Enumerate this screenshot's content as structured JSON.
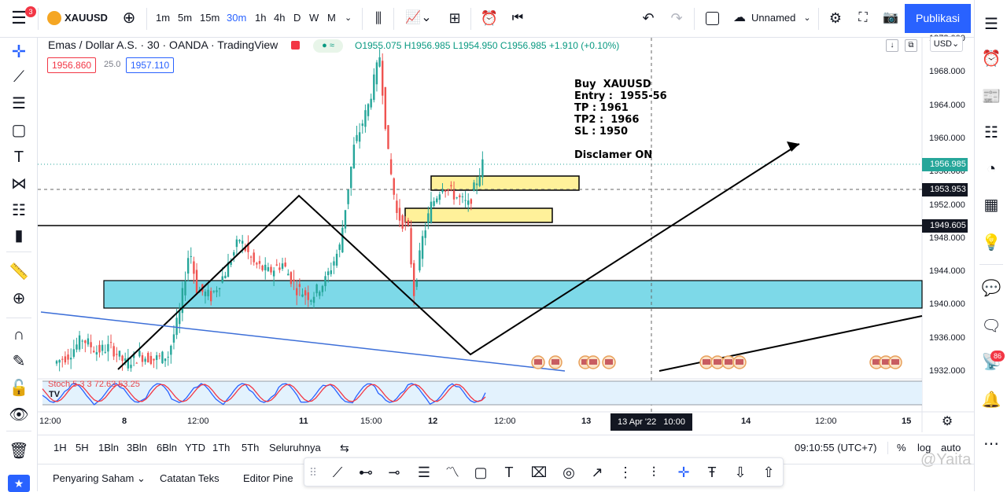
{
  "topbar": {
    "symbol": "XAUUSD",
    "intervals": [
      "1m",
      "5m",
      "15m",
      "30m",
      "1h",
      "4h",
      "D",
      "W",
      "M"
    ],
    "active_interval": "30m",
    "layout_name": "Unnamed",
    "publish_label": "Publikasi",
    "badge_count": "3"
  },
  "legend": {
    "title": "Emas / Dollar A.S. · 30 · OANDA · TradingView",
    "ohlc": "O1955.075 H1956.985 L1954.950 C1956.985 +1.910 (+0.10%)",
    "bid": "1956.860",
    "spread": "25.0",
    "ask": "1957.110",
    "currency": "USD"
  },
  "note": {
    "lines": [
      "Buy  XAUUSD",
      "Entry :  1955-56",
      "TP : 1961",
      "TP2 :  1966",
      "SL : 1950",
      "",
      "Disclamer ON"
    ]
  },
  "price_axis": {
    "labels": [
      "1972.000",
      "1968.000",
      "1964.000",
      "1960.000",
      "1956.000",
      "1952.000",
      "1948.000",
      "1944.000",
      "1940.000",
      "1936.000",
      "1932.000"
    ],
    "tags": [
      {
        "value": "1956.985",
        "color": "#26a69a"
      },
      {
        "value": "1953.953",
        "color": "#131722"
      },
      {
        "value": "1949.605",
        "color": "#131722"
      }
    ]
  },
  "time_axis": {
    "labels": [
      "12:00",
      "8",
      "12:00",
      "11",
      "15:00",
      "12",
      "12:00",
      "13",
      "14",
      "12:00",
      "15"
    ],
    "crosshair": "13 Apr '22   10:00"
  },
  "stoch": {
    "label": "Stoch 5 3 3  72.63  53.25"
  },
  "bottombar": {
    "ranges": [
      "1H",
      "5H",
      "1Bln",
      "3Bln",
      "6Bln",
      "YTD",
      "1Th",
      "5Th",
      "Seluruhnya"
    ],
    "clock": "09:10:55 (UTC+7)",
    "percent": "%",
    "log": "log",
    "auto": "auto"
  },
  "panels": {
    "items": [
      "Penyaring Saham",
      "Catatan Teks",
      "Editor Pine"
    ]
  },
  "right_badge": "86",
  "watermark": "@Yaita",
  "chart_data": {
    "type": "candlestick",
    "ylim": [
      1932,
      1972
    ],
    "levels": [
      1949.605,
      1953.953,
      1956.985
    ],
    "zones": [
      {
        "from": 1939.8,
        "to": 1943.3,
        "color": "#7dd9e8"
      },
      {
        "from": 1951.3,
        "to": 1953.0,
        "color": "#fff19a"
      },
      {
        "from": 1954.1,
        "to": 1955.8,
        "color": "#fff19a"
      }
    ]
  }
}
